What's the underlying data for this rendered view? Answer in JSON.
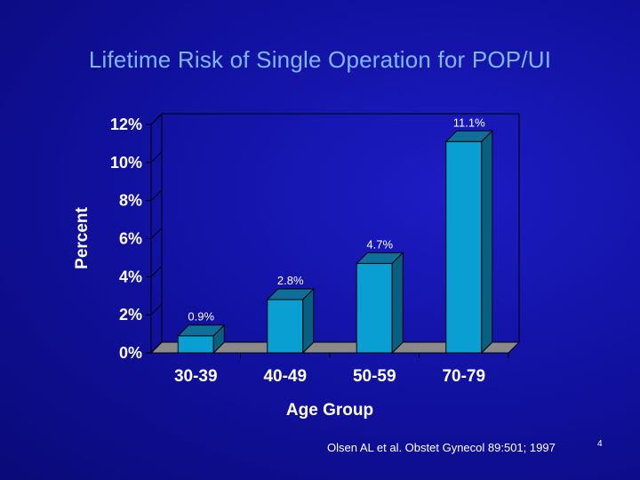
{
  "slide": {
    "title": "Lifetime Risk of Single Operation for POP/UI",
    "citation": "Olsen AL et al. Obstet Gynecol 89:501; 1997",
    "page_number": "4"
  },
  "colors": {
    "bar_front": "#0a9fd2",
    "bar_top": "#0f6f98",
    "bar_side": "#07607f",
    "floor": "#8a8a8a",
    "axis_text": "#ffffff",
    "title_text": "#7fb6ff"
  },
  "chart_data": {
    "type": "bar",
    "title": "",
    "xlabel": "Age Group",
    "ylabel": "Percent",
    "categories": [
      "30-39",
      "40-49",
      "50-59",
      "70-79"
    ],
    "values": [
      0.9,
      2.8,
      4.7,
      11.1
    ],
    "data_labels": [
      "0.9%",
      "2.8%",
      "4.7%",
      "11.1%"
    ],
    "ylim": [
      0,
      12
    ],
    "yticks": [
      0,
      2,
      4,
      6,
      8,
      10,
      12
    ],
    "ytick_labels": [
      "0%",
      "2%",
      "4%",
      "6%",
      "8%",
      "10%",
      "12%"
    ],
    "grid": false,
    "legend": false
  }
}
